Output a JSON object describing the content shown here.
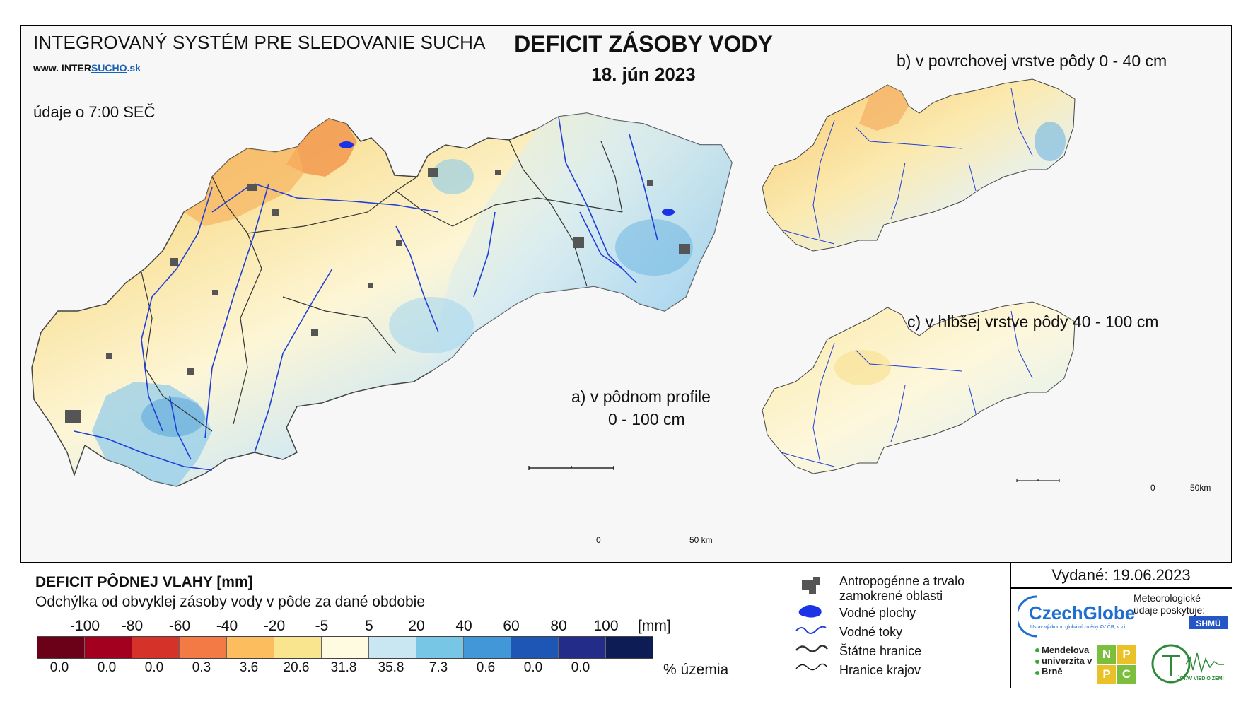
{
  "header": {
    "system_title": "INTEGROVANÝ SYSTÉM PRE SLEDOVANIE SUCHA",
    "website_prefix": "www. INTER",
    "website_bold": "SUCHO",
    "website_suffix": ".sk",
    "data_time": "údaje o 7:00 SEČ",
    "title": "DEFICIT ZÁSOBY VODY",
    "date": "18. jún 2023"
  },
  "panels": {
    "a_label_line1": "a) v pôdnom profile",
    "a_label_line2": "0 - 100 cm",
    "b_label": "b) v povrchovej vrstve pôdy 0 - 40 cm",
    "c_label": "c) v hlbšej vrstve pôdy 40 - 100 cm"
  },
  "scale_bar_main": {
    "start": "0",
    "end": "50 km"
  },
  "scale_bar_small": {
    "start": "0",
    "end": "50km"
  },
  "legend": {
    "title": "DEFICIT PÔDNEJ VLAHY [mm]",
    "subtitle": "Odchýlka od obvyklej zásoby vody v pôde za dané obdobie",
    "tick_labels": [
      "-100",
      "-80",
      "-60",
      "-40",
      "-20",
      "-5",
      "5",
      "20",
      "40",
      "60",
      "80",
      "100"
    ],
    "unit": "[mm]",
    "colors": [
      "#6b0019",
      "#a3001f",
      "#d5332a",
      "#f47a45",
      "#fbbd5e",
      "#f9e58e",
      "#fffbe0",
      "#c9e6f3",
      "#78c6e6",
      "#4197d8",
      "#1e56b5",
      "#232c88",
      "#0d1c55"
    ],
    "percent_values": [
      "0.0",
      "0.0",
      "0.0",
      "0.3",
      "3.6",
      "20.6",
      "31.8",
      "35.8",
      "7.3",
      "0.6",
      "0.0",
      "0.0"
    ],
    "percent_label": "% územia"
  },
  "symbols": {
    "urban": "Antropogénne a trvalo zamokrené oblasti",
    "water_bodies": "Vodné plochy",
    "rivers": "Vodné toky",
    "state_border": "Štátne hranice",
    "region_border": "Hranice krajov"
  },
  "issued": "Vydané: 19.06.2023",
  "credits": {
    "czechglobe": "CzechGlobe",
    "czechglobe_sub": "Ústav výzkumu globální změny AV ČR, v.v.i.",
    "meteo": "Meteorologické údaje poskytuje:",
    "shmu": "SHMÚ",
    "mendel": "Mendelova univerzita v Brně",
    "nppc": [
      "N",
      "P",
      "P",
      "C"
    ],
    "uvz": "ÚSTAV VIED O ZEMI"
  }
}
